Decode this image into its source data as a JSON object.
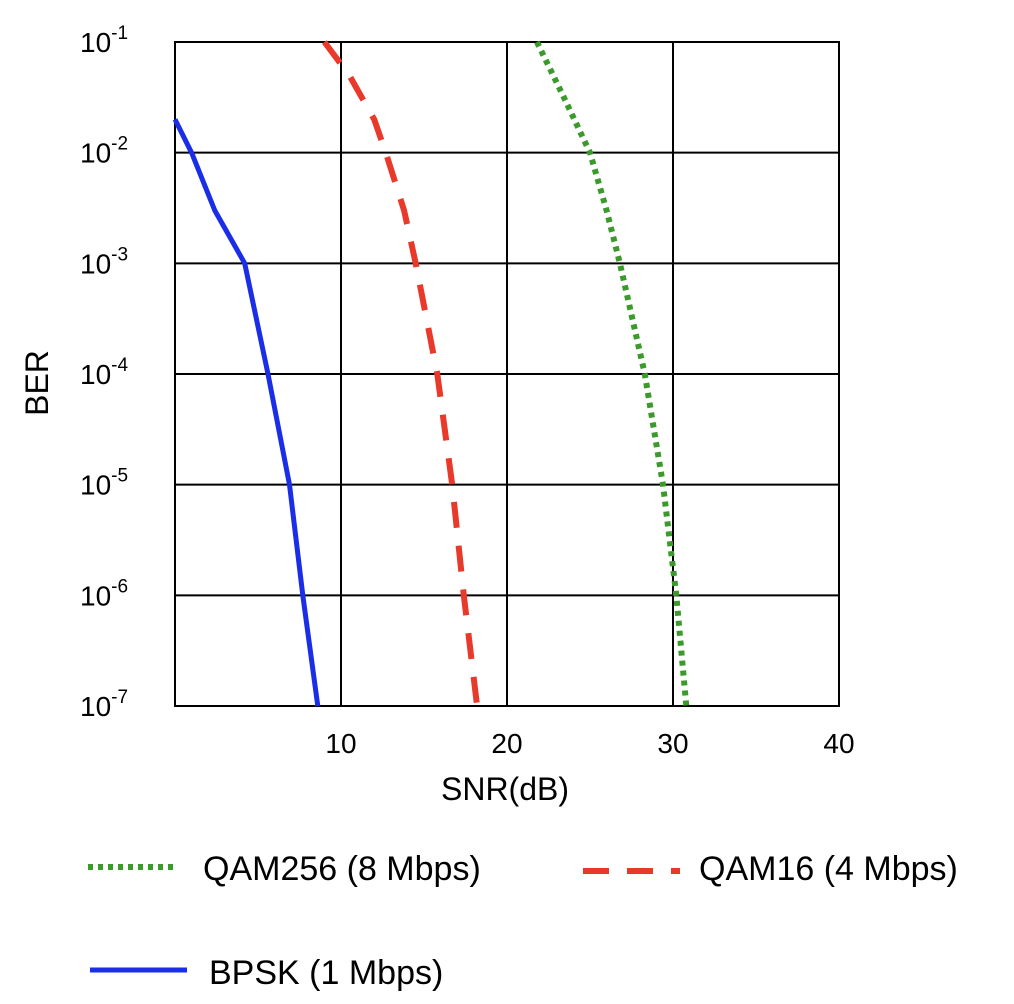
{
  "chart_data": {
    "type": "line",
    "title": "",
    "xlabel": "SNR(dB)",
    "ylabel": "BER",
    "x_scale": "linear",
    "y_scale": "log",
    "xlim": [
      0,
      40
    ],
    "ylim": [
      1e-07,
      0.1
    ],
    "x_ticks": [
      "10",
      "20",
      "30",
      "40"
    ],
    "y_ticks": [
      {
        "base": "10",
        "exp": "-1",
        "value": 0.1
      },
      {
        "base": "10",
        "exp": "-2",
        "value": 0.01
      },
      {
        "base": "10",
        "exp": "-3",
        "value": 0.001
      },
      {
        "base": "10",
        "exp": "-4",
        "value": 0.0001
      },
      {
        "base": "10",
        "exp": "-5",
        "value": 1e-05
      },
      {
        "base": "10",
        "exp": "-6",
        "value": 1e-06
      },
      {
        "base": "10",
        "exp": "-7",
        "value": 1e-07
      }
    ],
    "grid": true,
    "legend_position": "bottom",
    "series": [
      {
        "name": "QAM256 (8 Mbps)",
        "color": "#3a9a2a",
        "style": "dotted",
        "points": [
          [
            21.8,
            0.1
          ],
          [
            23.5,
            0.03
          ],
          [
            25.0,
            0.01
          ],
          [
            26.0,
            0.003
          ],
          [
            26.8,
            0.001
          ],
          [
            28.3,
            0.0001
          ],
          [
            29.4,
            1e-05
          ],
          [
            30.2,
            1e-06
          ],
          [
            30.8,
            1e-07
          ]
        ]
      },
      {
        "name": "QAM16 (4 Mbps)",
        "color": "#e8392a",
        "style": "dashed",
        "points": [
          [
            9.0,
            0.1
          ],
          [
            10.5,
            0.05
          ],
          [
            12.0,
            0.02
          ],
          [
            12.7,
            0.01
          ],
          [
            13.8,
            0.003
          ],
          [
            14.5,
            0.001
          ],
          [
            15.8,
            0.0001
          ],
          [
            16.7,
            1e-05
          ],
          [
            17.4,
            1e-06
          ],
          [
            18.2,
            1e-07
          ]
        ]
      },
      {
        "name": "BPSK (1 Mbps)",
        "color": "#1a2ee8",
        "style": "solid",
        "points": [
          [
            0,
            0.02
          ],
          [
            1.0,
            0.01
          ],
          [
            2.4,
            0.003
          ],
          [
            4.2,
            0.001
          ],
          [
            5.6,
            0.0001
          ],
          [
            6.9,
            1e-05
          ],
          [
            7.7,
            1e-06
          ],
          [
            8.6,
            1e-07
          ]
        ]
      }
    ]
  }
}
